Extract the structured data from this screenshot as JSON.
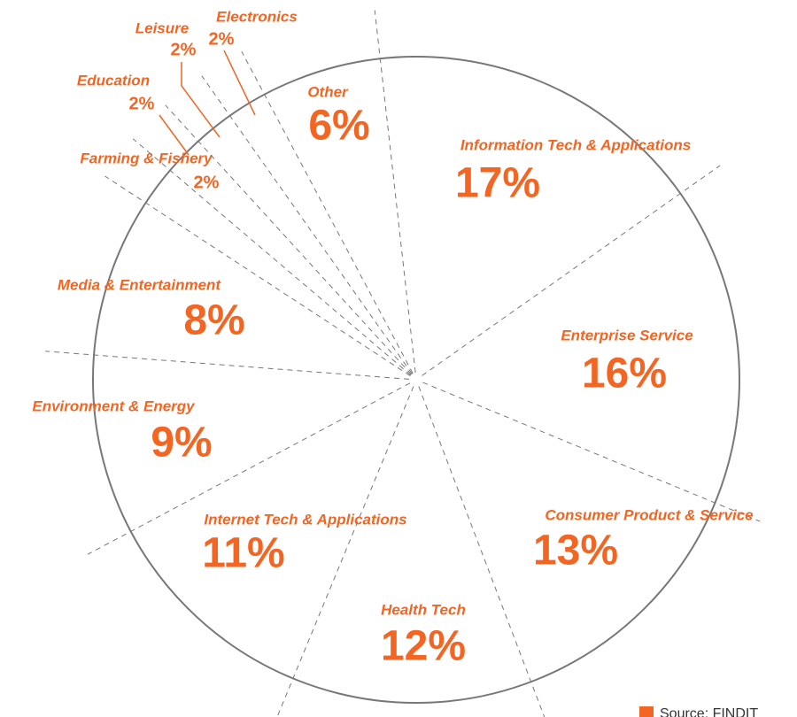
{
  "chart_data": {
    "type": "pie",
    "categories": [
      "Other",
      "Information Tech & Applications",
      "Enterprise Service",
      "Consumer Product & Service",
      "Health Tech",
      "Internet Tech & Applications",
      "Environment & Energy",
      "Media & Entertainment",
      "Farming & Fishery",
      "Education",
      "Leisure",
      "Electronics"
    ],
    "values": [
      6,
      17,
      16,
      13,
      12,
      11,
      9,
      8,
      2,
      2,
      2,
      2
    ],
    "value_labels": [
      "6%",
      "17%",
      "16%",
      "13%",
      "12%",
      "11%",
      "9%",
      "8%",
      "2%",
      "2%",
      "2%",
      "2%"
    ],
    "color": "#f26522",
    "source": "Source: FINDIT"
  }
}
